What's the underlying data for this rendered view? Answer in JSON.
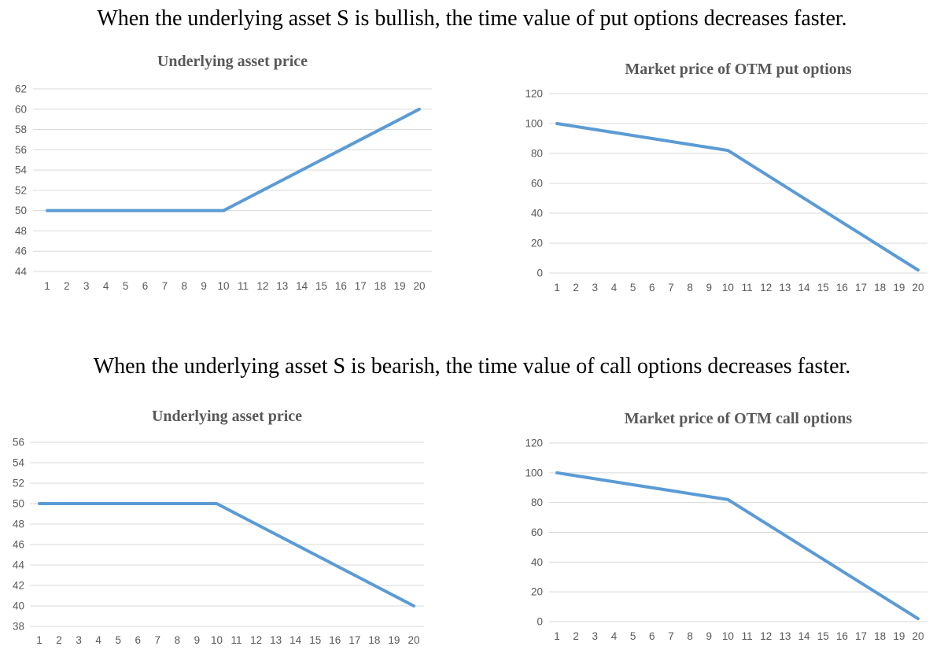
{
  "page": {
    "headline_top": "When the underlying asset S is bullish, the time value of put options decreases faster.",
    "headline_bottom": "When the underlying asset S is bearish, the time value of call options decreases faster."
  },
  "colors": {
    "line": "#5B9BD5",
    "grid": "#D9D9D9",
    "tick_label": "#595959",
    "chart_title": "#595959",
    "headline": "#000000",
    "background": "#ffffff"
  },
  "chart_data": [
    {
      "id": "underlying-asset-price-bullish",
      "type": "line",
      "title": "Underlying asset price",
      "categories": [
        "1",
        "2",
        "3",
        "4",
        "5",
        "6",
        "7",
        "8",
        "9",
        "10",
        "11",
        "12",
        "13",
        "14",
        "15",
        "16",
        "17",
        "18",
        "19",
        "20"
      ],
      "values": [
        50,
        50,
        50,
        50,
        50,
        50,
        50,
        50,
        50,
        50,
        51,
        52,
        53,
        54,
        55,
        56,
        57,
        58,
        59,
        60
      ],
      "xlabel": "",
      "ylabel": "",
      "ylim": [
        44,
        62
      ],
      "y_step": 2,
      "grid": true,
      "legend": "none"
    },
    {
      "id": "market-price-otm-put-options",
      "type": "line",
      "title": "Market price of OTM put options",
      "categories": [
        "1",
        "2",
        "3",
        "4",
        "5",
        "6",
        "7",
        "8",
        "9",
        "10",
        "11",
        "12",
        "13",
        "14",
        "15",
        "16",
        "17",
        "18",
        "19",
        "20"
      ],
      "values": [
        100,
        98,
        96,
        94,
        92,
        90,
        88,
        86,
        84,
        82,
        74,
        66,
        58,
        50,
        42,
        34,
        26,
        18,
        10,
        2
      ],
      "xlabel": "",
      "ylabel": "",
      "ylim": [
        0,
        120
      ],
      "y_step": 20,
      "grid": true,
      "legend": "none"
    },
    {
      "id": "underlying-asset-price-bearish",
      "type": "line",
      "title": "Underlying asset price",
      "categories": [
        "1",
        "2",
        "3",
        "4",
        "5",
        "6",
        "7",
        "8",
        "9",
        "10",
        "11",
        "12",
        "13",
        "14",
        "15",
        "16",
        "17",
        "18",
        "19",
        "20"
      ],
      "values": [
        50,
        50,
        50,
        50,
        50,
        50,
        50,
        50,
        50,
        50,
        49,
        48,
        47,
        46,
        45,
        44,
        43,
        42,
        41,
        40
      ],
      "xlabel": "",
      "ylabel": "",
      "ylim": [
        38,
        56
      ],
      "y_step": 2,
      "grid": true,
      "legend": "none"
    },
    {
      "id": "market-price-otm-call-options",
      "type": "line",
      "title": "Market price of OTM call options",
      "categories": [
        "1",
        "2",
        "3",
        "4",
        "5",
        "6",
        "7",
        "8",
        "9",
        "10",
        "11",
        "12",
        "13",
        "14",
        "15",
        "16",
        "17",
        "18",
        "19",
        "20"
      ],
      "values": [
        100,
        98,
        96,
        94,
        92,
        90,
        88,
        86,
        84,
        82,
        74,
        66,
        58,
        50,
        42,
        34,
        26,
        18,
        10,
        2
      ],
      "xlabel": "",
      "ylabel": "",
      "ylim": [
        0,
        120
      ],
      "y_step": 20,
      "grid": true,
      "legend": "none"
    }
  ]
}
